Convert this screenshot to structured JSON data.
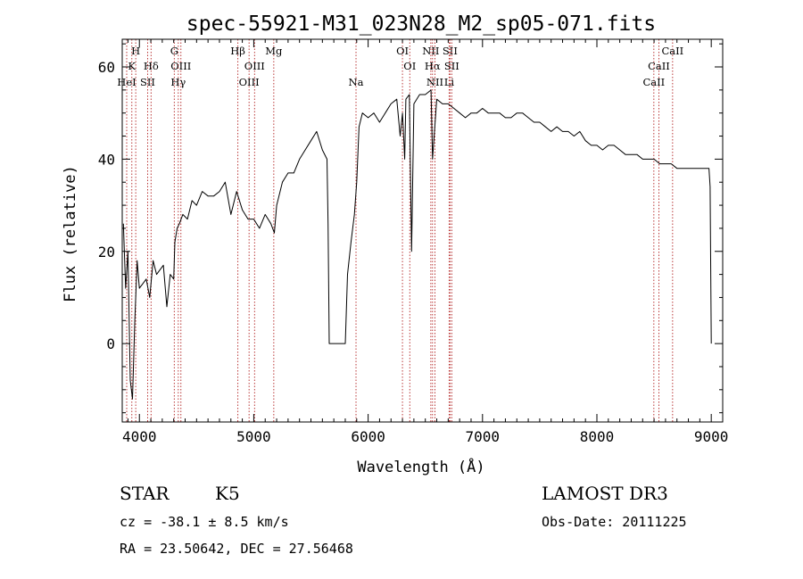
{
  "chart_data": {
    "type": "line",
    "title": "spec-55921-M31_023N28_M2_sp05-071.fits",
    "xlabel": "Wavelength (Å)",
    "ylabel": "Flux (relative)",
    "xlim": [
      3850,
      9100
    ],
    "ylim": [
      -17,
      66
    ],
    "x_ticks": [
      "4000",
      "5000",
      "6000",
      "7000",
      "8000",
      "9000"
    ],
    "y_ticks": [
      "0",
      "20",
      "40",
      "60"
    ],
    "series": [
      {
        "name": "flux",
        "x": [
          3860,
          3880,
          3900,
          3920,
          3940,
          3960,
          3980,
          4000,
          4030,
          4060,
          4090,
          4120,
          4150,
          4180,
          4210,
          4240,
          4270,
          4300,
          4310,
          4330,
          4350,
          4380,
          4420,
          4460,
          4500,
          4550,
          4600,
          4650,
          4700,
          4750,
          4800,
          4850,
          4900,
          4950,
          5000,
          5050,
          5100,
          5150,
          5180,
          5200,
          5250,
          5300,
          5350,
          5400,
          5450,
          5500,
          5550,
          5600,
          5640,
          5650,
          5660,
          5700,
          5760,
          5800,
          5820,
          5850,
          5880,
          5900,
          5920,
          5950,
          6000,
          6050,
          6100,
          6150,
          6200,
          6250,
          6280,
          6300,
          6320,
          6330,
          6360,
          6380,
          6400,
          6450,
          6500,
          6550,
          6563,
          6600,
          6650,
          6700,
          6750,
          6800,
          6850,
          6900,
          6950,
          7000,
          7050,
          7100,
          7150,
          7200,
          7250,
          7300,
          7350,
          7400,
          7450,
          7500,
          7550,
          7600,
          7650,
          7700,
          7750,
          7800,
          7850,
          7900,
          7950,
          8000,
          8050,
          8100,
          8150,
          8200,
          8250,
          8300,
          8350,
          8400,
          8450,
          8500,
          8550,
          8600,
          8650,
          8700,
          8750,
          8800,
          8850,
          8900,
          8950,
          8980,
          8990,
          9000
        ],
        "y": [
          26,
          12,
          20,
          -8,
          -12,
          5,
          18,
          12,
          13,
          14,
          10,
          18,
          15,
          16,
          17,
          8,
          15,
          14,
          22,
          25,
          26,
          28,
          27,
          31,
          30,
          33,
          32,
          32,
          33,
          35,
          28,
          33,
          29,
          27,
          27,
          25,
          28,
          26,
          24,
          30,
          35,
          37,
          37,
          40,
          42,
          44,
          46,
          42,
          40,
          26,
          0,
          0,
          0,
          0,
          15,
          22,
          28,
          35,
          47,
          50,
          49,
          50,
          48,
          50,
          52,
          53,
          45,
          50,
          40,
          53,
          54,
          20,
          52,
          54,
          54,
          55,
          40,
          53,
          52,
          52,
          51,
          50,
          49,
          50,
          50,
          51,
          50,
          50,
          50,
          49,
          49,
          50,
          50,
          49,
          48,
          48,
          47,
          46,
          47,
          46,
          46,
          45,
          46,
          44,
          43,
          43,
          42,
          43,
          43,
          42,
          41,
          41,
          41,
          40,
          40,
          40,
          39,
          39,
          39,
          38,
          38,
          38,
          38,
          38,
          38,
          38,
          34,
          0
        ]
      }
    ],
    "annotations": {
      "spectral_lines": [
        {
          "label": "H",
          "wavelength": 3968,
          "row": 0
        },
        {
          "label": "K",
          "wavelength": 3934,
          "row": 1
        },
        {
          "label": "HeI",
          "wavelength": 3889,
          "row": 2
        },
        {
          "label": "SII",
          "wavelength": 4072,
          "row": 2
        },
        {
          "label": "Hδ",
          "wavelength": 4102,
          "row": 1
        },
        {
          "label": "G",
          "wavelength": 4305,
          "row": 0
        },
        {
          "label": "OIII",
          "wavelength": 4363,
          "row": 1
        },
        {
          "label": "Hγ",
          "wavelength": 4340,
          "row": 2
        },
        {
          "label": "Hβ",
          "wavelength": 4861,
          "row": 0
        },
        {
          "label": "OIII",
          "wavelength": 5007,
          "row": 1
        },
        {
          "label": "OIII",
          "wavelength": 4959,
          "row": 2
        },
        {
          "label": "Mg",
          "wavelength": 5175,
          "row": 0
        },
        {
          "label": "Na",
          "wavelength": 5894,
          "row": 2
        },
        {
          "label": "OI",
          "wavelength": 6300,
          "row": 0
        },
        {
          "label": "OI",
          "wavelength": 6364,
          "row": 1
        },
        {
          "label": "NII",
          "wavelength": 6548,
          "row": 0
        },
        {
          "label": "SII",
          "wavelength": 6716,
          "row": 0
        },
        {
          "label": "Hα",
          "wavelength": 6563,
          "row": 1
        },
        {
          "label": "SII",
          "wavelength": 6731,
          "row": 1
        },
        {
          "label": "NII",
          "wavelength": 6584,
          "row": 2
        },
        {
          "label": "Li",
          "wavelength": 6708,
          "row": 2
        },
        {
          "label": "CaII",
          "wavelength": 8662,
          "row": 0
        },
        {
          "label": "CaII",
          "wavelength": 8542,
          "row": 1
        },
        {
          "label": "CaII",
          "wavelength": 8498,
          "row": 2
        }
      ]
    }
  },
  "footer": {
    "class_label": "STAR",
    "subclass_label": "K5",
    "survey_label": "LAMOST DR3",
    "cz_text": "cz = -38.1 ± 8.5 km/s",
    "obs_date_text": "Obs-Date: 20111225",
    "coords_text": "RA =  23.50642, DEC =  27.56468"
  },
  "colors": {
    "line_marker": "#b22222",
    "spectrum": "#000000"
  }
}
